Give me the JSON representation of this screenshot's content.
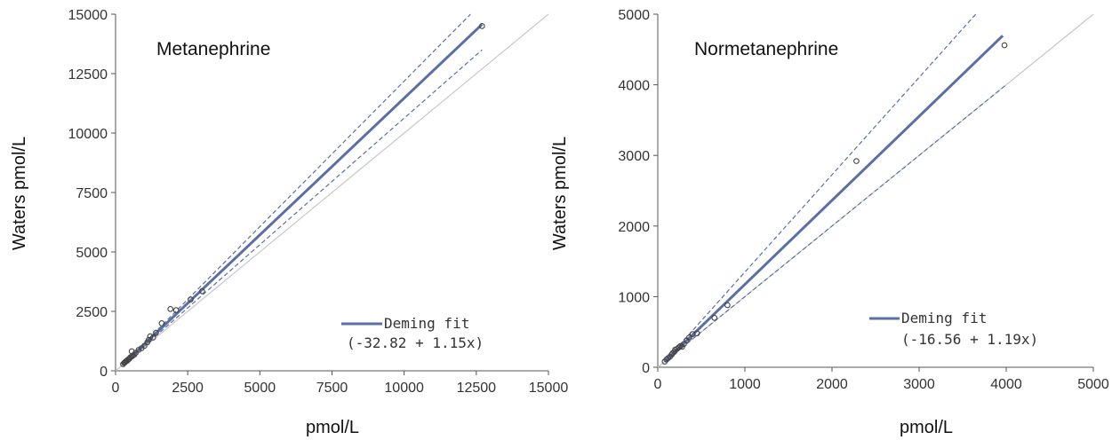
{
  "chart_data": [
    {
      "type": "scatter",
      "title": "Metanephrine",
      "xlabel": "pmol/L",
      "ylabel": "Waters pmol/L",
      "xlim": [
        0,
        15000
      ],
      "ylim": [
        0,
        15000
      ],
      "xticks": [
        0,
        2500,
        5000,
        7500,
        10000,
        12500,
        15000
      ],
      "yticks": [
        0,
        2500,
        5000,
        7500,
        10000,
        12500,
        15000
      ],
      "grid": false,
      "legend_position": "bottom-right",
      "legend": {
        "label": "Deming fit",
        "equation": "(-32.82 + 1.15x)"
      },
      "colors": {
        "fit": "#5b6fa6",
        "ci": "#5b6fa6",
        "identity": "#c8c8c8",
        "points": "#444444"
      },
      "fit": {
        "intercept": -32.82,
        "slope": 1.15,
        "x_range": [
          250,
          12700
        ]
      },
      "ci_upper": [
        [
          250,
          250
        ],
        [
          12300,
          15000
        ]
      ],
      "ci_lower": [
        [
          250,
          250
        ],
        [
          12700,
          13500
        ]
      ],
      "identity": [
        [
          0,
          0
        ],
        [
          15000,
          15000
        ]
      ],
      "points": [
        [
          260,
          280
        ],
        [
          300,
          330
        ],
        [
          330,
          360
        ],
        [
          360,
          400
        ],
        [
          400,
          420
        ],
        [
          430,
          470
        ],
        [
          470,
          500
        ],
        [
          510,
          560
        ],
        [
          560,
          600
        ],
        [
          600,
          640
        ],
        [
          650,
          680
        ],
        [
          700,
          760
        ],
        [
          560,
          820
        ],
        [
          800,
          880
        ],
        [
          900,
          950
        ],
        [
          1000,
          1050
        ],
        [
          1100,
          1200
        ],
        [
          1150,
          1300
        ],
        [
          1200,
          1450
        ],
        [
          1300,
          1400
        ],
        [
          1400,
          1600
        ],
        [
          1600,
          2000
        ],
        [
          1900,
          2600
        ],
        [
          2100,
          2550
        ],
        [
          2600,
          3000
        ],
        [
          3000,
          3350
        ],
        [
          12700,
          14500
        ]
      ]
    },
    {
      "type": "scatter",
      "title": "Normetanephrine",
      "xlabel": "pmol/L",
      "ylabel": "Waters pmol/L",
      "xlim": [
        0,
        5000
      ],
      "ylim": [
        0,
        5000
      ],
      "xticks": [
        0,
        1000,
        2000,
        3000,
        4000,
        5000
      ],
      "yticks": [
        0,
        1000,
        2000,
        3000,
        4000,
        5000
      ],
      "grid": false,
      "legend_position": "bottom-right",
      "legend": {
        "label": "Deming fit",
        "equation": "(-16.56 + 1.19x)"
      },
      "colors": {
        "fit": "#5b6fa6",
        "ci": "#5b6fa6",
        "identity": "#c8c8c8",
        "points": "#444444"
      },
      "fit": {
        "intercept": -16.56,
        "slope": 1.19,
        "x_range": [
          80,
          3960
        ]
      },
      "ci_upper": [
        [
          80,
          80
        ],
        [
          3650,
          5000
        ]
      ],
      "ci_lower": [
        [
          80,
          80
        ],
        [
          4000,
          4000
        ]
      ],
      "identity": [
        [
          0,
          0
        ],
        [
          5000,
          5000
        ]
      ],
      "points": [
        [
          80,
          80
        ],
        [
          100,
          110
        ],
        [
          120,
          130
        ],
        [
          140,
          150
        ],
        [
          160,
          180
        ],
        [
          170,
          200
        ],
        [
          190,
          220
        ],
        [
          200,
          250
        ],
        [
          220,
          260
        ],
        [
          240,
          280
        ],
        [
          260,
          300
        ],
        [
          280,
          290
        ],
        [
          300,
          330
        ],
        [
          330,
          380
        ],
        [
          360,
          420
        ],
        [
          400,
          470
        ],
        [
          450,
          480
        ],
        [
          650,
          700
        ],
        [
          800,
          880
        ],
        [
          2280,
          2920
        ],
        [
          3980,
          4560
        ]
      ]
    }
  ]
}
